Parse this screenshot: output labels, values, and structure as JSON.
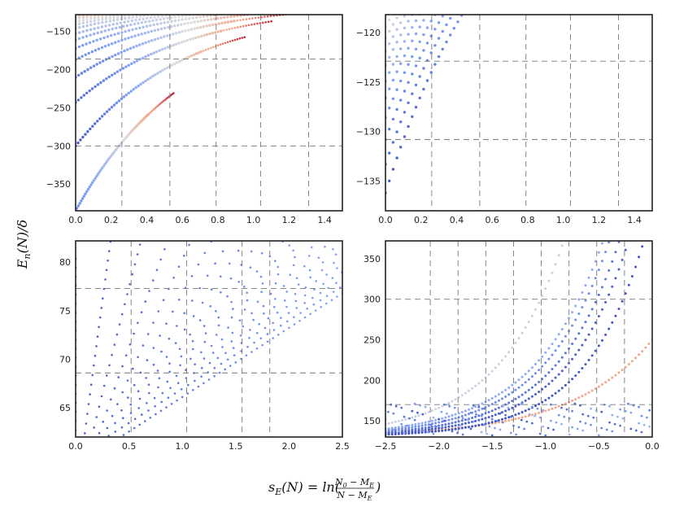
{
  "chart_data": [
    {
      "type": "scatter",
      "id": "top-left",
      "xlim": [
        0,
        1.5
      ],
      "ylim": [
        -385,
        -128
      ],
      "xticks": [
        0.0,
        0.2,
        0.4,
        0.6,
        0.8,
        1.0,
        1.2,
        1.4
      ],
      "xtick_labels": [
        "0.0",
        "0.2",
        "0.4",
        "0.6",
        "0.8",
        "1.0",
        "1.2",
        "1.4"
      ],
      "yticks": [
        -150,
        -200,
        -250,
        -300,
        -350
      ],
      "ytick_labels": [
        "−150",
        "−200",
        "−250",
        "−300",
        "−350"
      ],
      "vgrid": [
        0.26,
        0.53,
        0.79,
        1.04,
        1.31
      ],
      "hgrid": [
        -186,
        -300
      ],
      "curve_b": -3,
      "colormap": "coolwarm",
      "curves": [
        {
          "a": -385,
          "color_t": 0.2,
          "x_end": 0.55
        },
        {
          "a": -300,
          "color_t": 0.05,
          "x_end": 0.95
        },
        {
          "a": -243,
          "color_t": 0.1,
          "x_end": 1.1
        },
        {
          "a": -210,
          "color_t": 0.15,
          "x_end": 1.2
        },
        {
          "a": -187,
          "color_t": 0.2,
          "x_end": 1.3
        },
        {
          "a": -172,
          "color_t": 0.25,
          "x_end": 1.4
        },
        {
          "a": -161,
          "color_t": 0.3,
          "x_end": 1.45
        },
        {
          "a": -153,
          "color_t": 0.35,
          "x_end": 1.48
        },
        {
          "a": -146,
          "color_t": 0.4,
          "x_end": 1.5
        },
        {
          "a": -141,
          "color_t": 0.45,
          "x_end": 1.5
        },
        {
          "a": -137,
          "color_t": 0.5,
          "x_end": 1.5
        },
        {
          "a": -133,
          "color_t": 0.55,
          "x_end": 1.5
        },
        {
          "a": -130,
          "color_t": 0.6,
          "x_end": 1.5
        }
      ]
    },
    {
      "type": "scatter",
      "id": "top-right",
      "xlim": [
        0,
        1.5
      ],
      "ylim": [
        -138,
        -118.2
      ],
      "xticks": [
        0.0,
        0.2,
        0.4,
        0.6,
        0.8,
        1.0,
        1.2,
        1.4
      ],
      "xtick_labels": [
        "0.0",
        "0.2",
        "0.4",
        "0.6",
        "0.8",
        "1.0",
        "1.2",
        "1.4"
      ],
      "yticks": [
        -120,
        -125,
        -130,
        -135
      ],
      "ytick_labels": [
        "−120",
        "−125",
        "−130",
        "−135"
      ],
      "vgrid": [
        0.26,
        0.53,
        0.79,
        1.04,
        1.31
      ],
      "hgrid": [
        -122.9,
        -130.8
      ],
      "curve_b": -0.5,
      "colormap": "coolwarm",
      "curves": [
        {
          "a": -136.2,
          "color_t": 0.05,
          "x_end": 1.5
        },
        {
          "a": -133.3,
          "color_t": 0.1,
          "x_end": 1.5
        },
        {
          "a": -130.8,
          "color_t": 0.15,
          "x_end": 1.5
        },
        {
          "a": -128.6,
          "color_t": 0.2,
          "x_end": 1.5
        },
        {
          "a": -126.6,
          "color_t": 0.25,
          "x_end": 1.5
        },
        {
          "a": -124.9,
          "color_t": 0.3,
          "x_end": 1.5
        },
        {
          "a": -123.3,
          "color_t": 0.35,
          "x_end": 1.5
        },
        {
          "a": -121.9,
          "color_t": 0.4,
          "x_end": 1.5
        },
        {
          "a": -120.6,
          "color_t": 0.45,
          "x_end": 1.5
        },
        {
          "a": -119.4,
          "color_t": 0.5,
          "x_end": 1.5
        },
        {
          "a": -118.4,
          "color_t": 0.55,
          "x_end": 1.5
        }
      ]
    },
    {
      "type": "scatter",
      "id": "bottom-left",
      "xlim": [
        0,
        2.5
      ],
      "ylim": [
        62,
        82.2
      ],
      "xticks": [
        0.0,
        0.5,
        1.0,
        1.5,
        2.0,
        2.5
      ],
      "xtick_labels": [
        "0.0",
        "0.5",
        "1.0",
        "1.5",
        "2.0",
        "2.5"
      ],
      "yticks": [
        65,
        70,
        75,
        80
      ],
      "ytick_labels": [
        "65",
        "70",
        "75",
        "80"
      ],
      "vgrid": [
        0.52,
        1.04,
        1.56,
        1.82
      ],
      "hgrid": [
        77.3,
        68.6
      ],
      "series_spacing": 0.93,
      "slope_start": 7.5,
      "slope_step": -0.28,
      "colormap": "coolwarm-blue"
    },
    {
      "type": "scatter",
      "id": "bottom-right",
      "xlim": [
        -2.5,
        0
      ],
      "ylim": [
        130,
        372
      ],
      "xticks": [
        -2.5,
        -2.0,
        -1.5,
        -1.0,
        -0.5,
        0.0
      ],
      "xtick_labels": [
        "−2.5",
        "−2.0",
        "−1.5",
        "−1.0",
        "−0.5",
        "0.0"
      ],
      "yticks": [
        150,
        200,
        250,
        300,
        350
      ],
      "ytick_labels": [
        "150",
        "200",
        "250",
        "300",
        "350"
      ],
      "vgrid": [
        -2.08,
        -1.82,
        -1.56,
        -1.3,
        -1.04,
        -0.78,
        -0.52,
        -0.26
      ],
      "hgrid": [
        300,
        170
      ],
      "curve_base": 130,
      "curves": [
        {
          "amp": 4.5,
          "k": 2.1,
          "color_t": 0.72
        },
        {
          "amp": 16,
          "k": 2.6,
          "color_t": 0.45
        },
        {
          "amp": 10,
          "k": 2.5,
          "color_t": 0.3
        },
        {
          "amp": 8,
          "k": 2.6,
          "color_t": 0.2
        },
        {
          "amp": 6,
          "k": 2.7,
          "color_t": 0.12
        },
        {
          "amp": 4.5,
          "k": 2.8,
          "color_t": 0.06
        },
        {
          "amp": 3,
          "k": 2.9,
          "color_t": 0.03
        }
      ]
    }
  ],
  "labels": {
    "ylabel": "E",
    "ylabel_sub": "n",
    "ylabel_rest": "(N)/δ",
    "xlabel": "s",
    "xlabel_sub": "E",
    "xlabel_rest1": "(N) = ln(",
    "xlabel_num": "N",
    "xlabel_num_sub": "0",
    "xlabel_num_rest": " − M",
    "xlabel_num_sub2": "E",
    "xlabel_den": "N − M",
    "xlabel_den_sub": "E",
    "xlabel_rest2": ")"
  }
}
